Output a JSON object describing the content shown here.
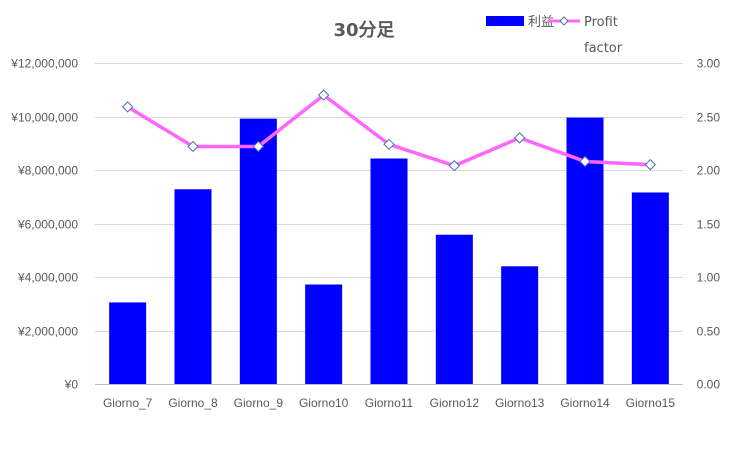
{
  "chart_data": {
    "type": "bar",
    "title": "30分足",
    "categories": [
      "Giorno_7",
      "Giorno_8",
      "Giorno_9",
      "Giorno10",
      "Giorno11",
      "Giorno12",
      "Giorno13",
      "Giorno14",
      "Giorno15"
    ],
    "series": [
      {
        "name": "利益",
        "type": "bar",
        "axis": "left",
        "color": "#0000ff",
        "values": [
          3050000,
          7280000,
          9920000,
          3720000,
          8430000,
          5580000,
          4400000,
          9960000,
          7160000
        ]
      },
      {
        "name_lines": [
          "Profit",
          "factor"
        ],
        "type": "line",
        "axis": "right",
        "color": "#ff66ff",
        "marker": "diamond",
        "values": [
          2.59,
          2.22,
          2.22,
          2.7,
          2.24,
          2.04,
          2.3,
          2.08,
          2.05
        ]
      }
    ],
    "y_left": {
      "range": [
        0,
        12000000
      ],
      "ticks": [
        0,
        2000000,
        4000000,
        6000000,
        8000000,
        10000000,
        12000000
      ],
      "tick_labels": [
        "¥0",
        "¥2,000,000",
        "¥4,000,000",
        "¥6,000,000",
        "¥8,000,000",
        "¥10,000,000",
        "¥12,000,000"
      ]
    },
    "y_right": {
      "range": [
        0,
        3
      ],
      "ticks": [
        0,
        0.5,
        1,
        1.5,
        2,
        2.5,
        3
      ],
      "tick_labels": [
        "0.00",
        "0.50",
        "1.00",
        "1.50",
        "2.00",
        "2.50",
        "3.00"
      ]
    },
    "grid": true,
    "legend": "top-right"
  }
}
